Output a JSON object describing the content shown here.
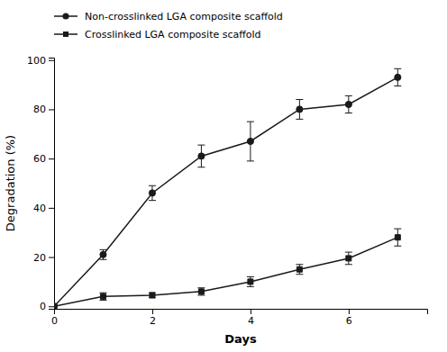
{
  "chart_data": {
    "type": "line",
    "x": [
      0,
      1,
      2,
      3,
      4,
      5,
      6,
      7
    ],
    "series": [
      {
        "name": "Non-crosslinked LGA composite scaffold",
        "color": "#1a1a1a",
        "marker": "circle",
        "line_style": "solid",
        "values": [
          0,
          21,
          46,
          61,
          67,
          80,
          82,
          93
        ],
        "errors": [
          0,
          2.0,
          3.0,
          4.5,
          8.0,
          4.0,
          3.5,
          3.5
        ]
      },
      {
        "name": "Crosslinked LGA composite scaffold",
        "color": "#1a1a1a",
        "marker": "square",
        "line_style": "solid",
        "values": [
          0,
          4,
          4.5,
          6,
          10,
          15,
          19.5,
          28
        ],
        "errors": [
          0,
          1.5,
          1.0,
          1.5,
          2.0,
          2.0,
          2.5,
          3.5
        ]
      }
    ],
    "xlabel": "Days",
    "ylabel": "Degradation (%)",
    "xlim": [
      0,
      7.6
    ],
    "ylim": [
      -1,
      101
    ],
    "xticks": [
      0,
      2,
      4,
      6
    ],
    "yticks": [
      0,
      20,
      40,
      60,
      80,
      100
    ],
    "grid": false,
    "legend": "top"
  }
}
